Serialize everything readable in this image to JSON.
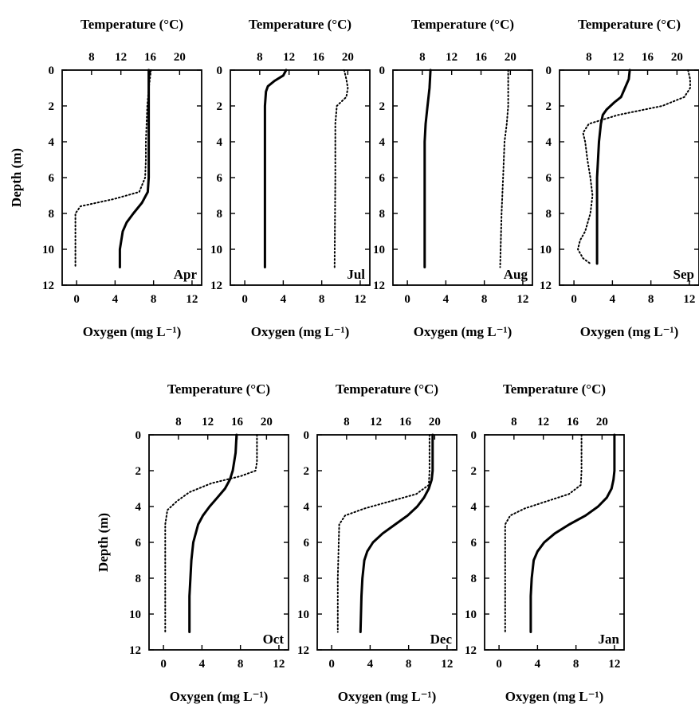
{
  "figure": {
    "top_axis_label": "Temperature (°C)",
    "bottom_axis_label": "Oxygen (mg L⁻¹)",
    "y_axis_label": "Depth (m)",
    "legend": "none"
  },
  "chart_data": [
    {
      "type": "line",
      "panel": "Apr",
      "ylabel": "Depth (m)",
      "ylim": [
        12,
        0
      ],
      "yticks": [
        0,
        2,
        4,
        6,
        8,
        10,
        12
      ],
      "xlabel_bottom": "Oxygen (mg L⁻¹)",
      "xlim_bottom": [
        -1.5,
        13
      ],
      "xticks_bottom": [
        0,
        4,
        8,
        12
      ],
      "xlabel_top": "Temperature (°C)",
      "xlim_top": [
        4,
        23
      ],
      "xticks_top": [
        8,
        12,
        16,
        20
      ],
      "series": [
        {
          "style": "dotted",
          "axis": "top",
          "depth": [
            0,
            1,
            2,
            3,
            4,
            5,
            6,
            6.8,
            7.2,
            7.6,
            8,
            9,
            11
          ],
          "x": [
            16.1,
            15.8,
            15.6,
            15.5,
            15.4,
            15.4,
            15.3,
            14.5,
            11,
            6.5,
            5.8,
            5.8,
            5.8
          ]
        },
        {
          "style": "solid",
          "axis": "bottom",
          "depth": [
            0,
            2,
            4,
            6,
            6.8,
            7.4,
            8,
            8.5,
            9,
            10,
            11
          ],
          "x": [
            7.5,
            7.5,
            7.5,
            7.5,
            7.4,
            6.8,
            5.9,
            5.2,
            4.8,
            4.5,
            4.5
          ]
        }
      ]
    },
    {
      "type": "line",
      "panel": "Jul",
      "ylabel": "Depth (m)",
      "ylim": [
        12,
        0
      ],
      "yticks": [
        0,
        2,
        4,
        6,
        8,
        10,
        12
      ],
      "xlabel_bottom": "Oxygen (mg L⁻¹)",
      "xlim_bottom": [
        -1.5,
        13
      ],
      "xticks_bottom": [
        0,
        4,
        8,
        12
      ],
      "xlabel_top": "Temperature (°C)",
      "xlim_top": [
        4,
        23
      ],
      "xticks_top": [
        8,
        12,
        16,
        20
      ],
      "series": [
        {
          "style": "dotted",
          "axis": "top",
          "depth": [
            0,
            0.5,
            1,
            1.5,
            2,
            3,
            6,
            11
          ],
          "x": [
            19.5,
            19.8,
            20,
            19.8,
            18.5,
            18.3,
            18.3,
            18.2
          ]
        },
        {
          "style": "solid",
          "axis": "bottom",
          "depth": [
            0,
            0.3,
            0.6,
            0.9,
            1.2,
            2,
            6,
            11
          ],
          "x": [
            4.3,
            4.0,
            3.1,
            2.4,
            2.2,
            2.1,
            2.1,
            2.1
          ]
        }
      ]
    },
    {
      "type": "line",
      "panel": "Aug",
      "ylabel": "Depth (m)",
      "ylim": [
        12,
        0
      ],
      "yticks": [
        0,
        2,
        4,
        6,
        8,
        10,
        12
      ],
      "xlabel_bottom": "Oxygen (mg L⁻¹)",
      "xlim_bottom": [
        -1.5,
        13
      ],
      "xticks_bottom": [
        0,
        4,
        8,
        12
      ],
      "xlabel_top": "Temperature (°C)",
      "xlim_top": [
        4,
        23
      ],
      "xticks_top": [
        8,
        12,
        16,
        20
      ],
      "series": [
        {
          "style": "dotted",
          "axis": "top",
          "depth": [
            0,
            1,
            2,
            3,
            4,
            6,
            8,
            11
          ],
          "x": [
            19.7,
            19.7,
            19.7,
            19.5,
            19.2,
            19,
            18.8,
            18.6
          ]
        },
        {
          "style": "solid",
          "axis": "bottom",
          "depth": [
            0,
            1,
            2,
            3,
            4,
            6,
            8,
            11
          ],
          "x": [
            2.4,
            2.3,
            2.1,
            1.9,
            1.8,
            1.8,
            1.8,
            1.8
          ]
        }
      ]
    },
    {
      "type": "line",
      "panel": "Sep",
      "ylabel": "Depth (m)",
      "ylim": [
        12,
        0
      ],
      "yticks": [
        0,
        2,
        4,
        6,
        8,
        10,
        12
      ],
      "xlabel_bottom": "Oxygen (mg L⁻¹)",
      "xlim_bottom": [
        -1.5,
        13
      ],
      "xticks_bottom": [
        0,
        4,
        8,
        12
      ],
      "xlabel_top": "Temperature (°C)",
      "xlim_top": [
        4,
        23
      ],
      "xticks_top": [
        8,
        12,
        16,
        20
      ],
      "series": [
        {
          "style": "dotted",
          "axis": "top",
          "depth": [
            0,
            0.5,
            1,
            1.5,
            2,
            2.5,
            3,
            3.5,
            4,
            5,
            6,
            7,
            8,
            9,
            9.5,
            10,
            10.5,
            10.8
          ],
          "x": [
            21.5,
            21.8,
            21.8,
            21,
            18,
            12,
            8,
            7.2,
            7.5,
            7.8,
            8.2,
            8.5,
            8.2,
            7.5,
            6.8,
            6.5,
            7.2,
            8.2
          ]
        },
        {
          "style": "solid",
          "axis": "bottom",
          "depth": [
            0,
            0.5,
            1,
            1.5,
            1.8,
            2.2,
            2.5,
            3,
            4,
            5,
            6,
            8,
            10.8
          ],
          "x": [
            5.8,
            5.7,
            5.3,
            4.9,
            4.2,
            3.4,
            3.0,
            2.8,
            2.6,
            2.5,
            2.4,
            2.4,
            2.4
          ]
        }
      ]
    },
    {
      "type": "line",
      "panel": "Oct",
      "ylabel": "Depth (m)",
      "ylim": [
        12,
        0
      ],
      "yticks": [
        0,
        2,
        4,
        6,
        8,
        10,
        12
      ],
      "xlabel_bottom": "Oxygen (mg L⁻¹)",
      "xlim_bottom": [
        -1.5,
        13
      ],
      "xticks_bottom": [
        0,
        4,
        8,
        12
      ],
      "xlabel_top": "Temperature (°C)",
      "xlim_top": [
        4,
        23
      ],
      "xticks_top": [
        8,
        12,
        16,
        20
      ],
      "series": [
        {
          "style": "dotted",
          "axis": "top",
          "depth": [
            0,
            1,
            1.5,
            2,
            2.3,
            2.7,
            3.2,
            3.7,
            4.2,
            5,
            8,
            11
          ],
          "x": [
            18.7,
            18.7,
            18.7,
            18.5,
            16.5,
            12.5,
            9.5,
            7.8,
            6.5,
            6.2,
            6.2,
            6.2
          ]
        },
        {
          "style": "solid",
          "axis": "bottom",
          "depth": [
            0,
            1,
            2,
            2.5,
            3,
            3.5,
            4,
            4.5,
            5,
            6,
            7,
            8,
            9,
            11
          ],
          "x": [
            7.6,
            7.5,
            7.2,
            6.9,
            6.4,
            5.6,
            4.8,
            4.1,
            3.6,
            3.1,
            2.9,
            2.8,
            2.7,
            2.7
          ]
        }
      ]
    },
    {
      "type": "line",
      "panel": "Dec",
      "ylabel": "Depth (m)",
      "ylim": [
        12,
        0
      ],
      "yticks": [
        0,
        2,
        4,
        6,
        8,
        10,
        12
      ],
      "xlabel_bottom": "Oxygen (mg L⁻¹)",
      "xlim_bottom": [
        -1.5,
        13
      ],
      "xticks_bottom": [
        0,
        4,
        8,
        12
      ],
      "xlabel_top": "Temperature (°C)",
      "xlim_top": [
        4,
        23
      ],
      "xticks_top": [
        8,
        12,
        16,
        20
      ],
      "series": [
        {
          "style": "dotted",
          "axis": "top",
          "depth": [
            0,
            1,
            2,
            2.8,
            3.3,
            3.7,
            4.1,
            4.5,
            5,
            8,
            11
          ],
          "x": [
            19.3,
            19.3,
            19.3,
            19.2,
            17.5,
            14,
            10.5,
            7.8,
            7,
            6.8,
            6.8
          ]
        },
        {
          "style": "solid",
          "axis": "bottom",
          "depth": [
            0,
            1,
            2,
            2.5,
            3,
            3.5,
            4,
            4.5,
            5,
            5.5,
            6,
            6.5,
            7,
            8,
            9,
            11
          ],
          "x": [
            10.5,
            10.5,
            10.5,
            10.4,
            10.1,
            9.6,
            8.9,
            7.9,
            6.6,
            5.3,
            4.3,
            3.7,
            3.4,
            3.2,
            3.1,
            3.0
          ]
        }
      ]
    },
    {
      "type": "line",
      "panel": "Jan",
      "ylabel": "Depth (m)",
      "ylim": [
        12,
        0
      ],
      "yticks": [
        0,
        2,
        4,
        6,
        8,
        10,
        12
      ],
      "xlabel_bottom": "Oxygen (mg L⁻¹)",
      "xlim_bottom": [
        -1.5,
        13
      ],
      "xticks_bottom": [
        0,
        4,
        8,
        12
      ],
      "xlabel_top": "Temperature (°C)",
      "xlim_top": [
        4,
        23
      ],
      "xticks_top": [
        8,
        12,
        16,
        20
      ],
      "series": [
        {
          "style": "dotted",
          "axis": "top",
          "depth": [
            0,
            1,
            2,
            2.8,
            3.3,
            3.7,
            4.1,
            4.5,
            5,
            8,
            11
          ],
          "x": [
            17.2,
            17.2,
            17.2,
            17.1,
            15.5,
            12.5,
            9.5,
            7.5,
            6.8,
            6.8,
            6.8
          ]
        },
        {
          "style": "solid",
          "axis": "bottom",
          "depth": [
            0,
            1,
            2,
            2.5,
            3,
            3.5,
            4,
            4.5,
            5,
            5.5,
            6,
            6.5,
            7,
            8,
            9,
            11
          ],
          "x": [
            12.0,
            12.0,
            12.0,
            11.9,
            11.7,
            11.2,
            10.3,
            9.0,
            7.3,
            5.8,
            4.7,
            4.0,
            3.6,
            3.4,
            3.3,
            3.3
          ]
        }
      ]
    }
  ]
}
